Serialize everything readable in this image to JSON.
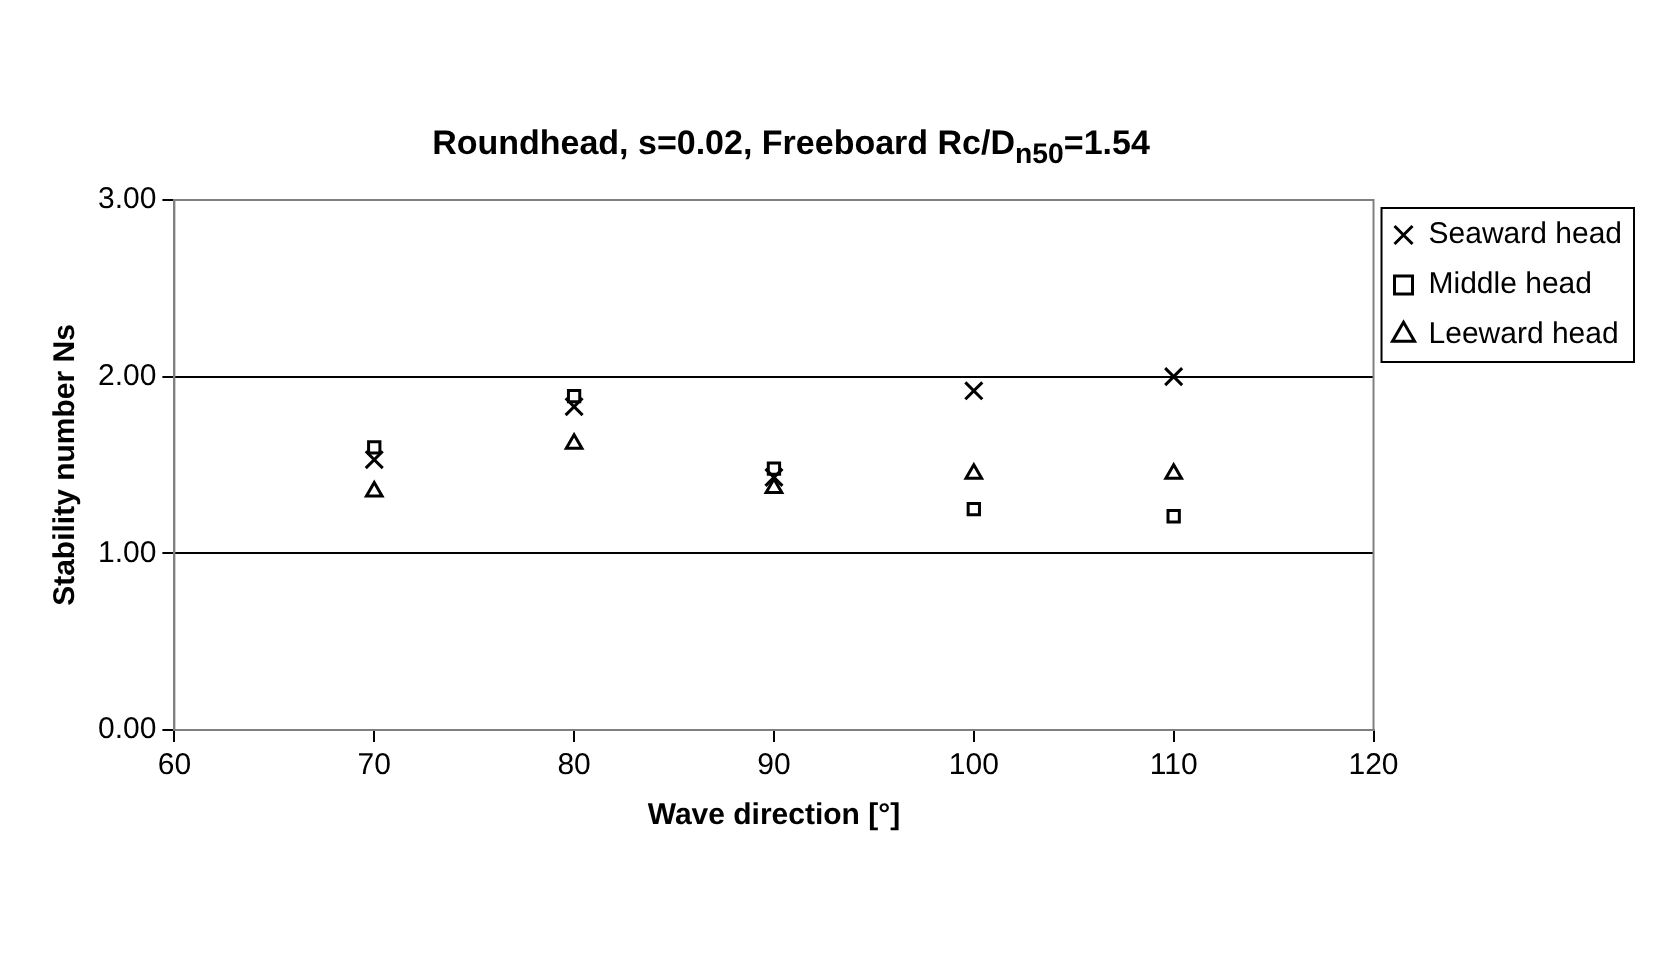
{
  "chart_data": {
    "type": "scatter",
    "title": "Roundhead, s=0.02, Freeboard Rc/D$_{n50}$=1.54",
    "xlabel": "Wave direction [°]",
    "ylabel": "Stability number Ns",
    "x": [
      70,
      80,
      90,
      100,
      110
    ],
    "series": [
      {
        "name": "Seaward head",
        "color": "#000000",
        "marker": "cross",
        "values": [
          1.53,
          1.83,
          1.43,
          1.92,
          2.0
        ]
      },
      {
        "name": "Middle head",
        "color": "#000000",
        "marker": "square",
        "values": [
          1.6,
          1.89,
          1.48,
          1.25,
          1.21
        ]
      },
      {
        "name": "Leeward head",
        "color": "#000000",
        "marker": "triangle",
        "values": [
          1.35,
          1.62,
          1.37,
          1.45,
          1.45
        ]
      }
    ],
    "xlim": [
      60,
      120
    ],
    "xticks": [
      60,
      70,
      80,
      90,
      100,
      110,
      120
    ],
    "ylim": [
      0,
      3
    ],
    "yticks": [
      {
        "value": 0,
        "label": "0.00"
      },
      {
        "value": 1,
        "label": "1.00"
      },
      {
        "value": 2,
        "label": "2.00"
      },
      {
        "value": 3,
        "label": "3.00"
      }
    ],
    "grid": "y",
    "legend": "top right"
  }
}
